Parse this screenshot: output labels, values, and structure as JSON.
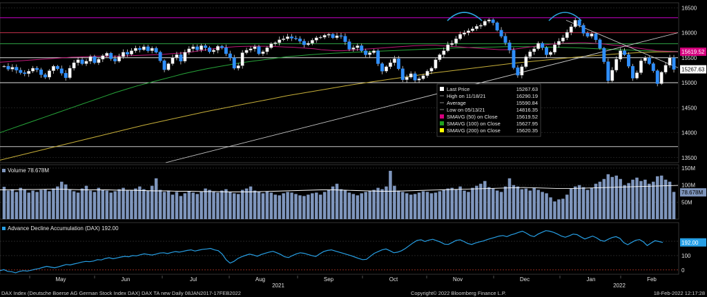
{
  "chart_data": [
    {
      "type": "candlestick",
      "panel": "price",
      "ylim": [
        13400,
        16600
      ],
      "yticks": [
        13500,
        14000,
        14500,
        15000,
        15500,
        16000,
        16500
      ],
      "price_boxes": [
        {
          "value": 15619.52,
          "label": "15619.52",
          "bg": "#d6007f",
          "fg": "#ffffff"
        },
        {
          "value": 15267.63,
          "label": "15267.63",
          "bg": "#ffffff",
          "fg": "#000000"
        }
      ],
      "close_series": [
        15330,
        15270,
        15310,
        15250,
        15200,
        15180,
        15230,
        15290,
        15260,
        15160,
        15110,
        15240,
        15330,
        15280,
        15190,
        15100,
        15290,
        15400,
        15460,
        15380,
        15430,
        15520,
        15400,
        15470,
        15540,
        15590,
        15480,
        15430,
        15520,
        15610,
        15570,
        15640,
        15690,
        15660,
        15720,
        15640,
        15690,
        15610,
        15440,
        15260,
        15380,
        15500,
        15560,
        15430,
        15610,
        15680,
        15720,
        15660,
        15740,
        15700,
        15620,
        15650,
        15730,
        15700,
        15580,
        15500,
        15290,
        15340,
        15600,
        15650,
        15680,
        15720,
        15580,
        15620,
        15700,
        15780,
        15800,
        15860,
        15880,
        15920,
        15890,
        15880,
        15830,
        15760,
        15790,
        15850,
        15900,
        15910,
        15950,
        15970,
        15900,
        15940,
        15930,
        15820,
        15670,
        15700,
        15740,
        15640,
        15560,
        15600,
        15640,
        15380,
        15230,
        15320,
        15400,
        15480,
        15280,
        15060,
        15110,
        15180,
        15050,
        15080,
        15140,
        15230,
        15290,
        15460,
        15560,
        15640,
        15760,
        15790,
        15880,
        15970,
        16000,
        16040,
        16080,
        16130,
        16150,
        16230,
        16260,
        16200,
        16050,
        15930,
        15800,
        15650,
        15300,
        15150,
        15320,
        15520,
        15620,
        15680,
        15790,
        15700,
        15560,
        15610,
        15760,
        15830,
        15900,
        16010,
        16120,
        16250,
        16150,
        15990,
        15930,
        15980,
        15860,
        15690,
        15420,
        15040,
        15250,
        15470,
        15640,
        15560,
        15330,
        15090,
        15200,
        15440,
        15500,
        15380,
        15240,
        14980,
        15210,
        15350,
        15500,
        15267
      ],
      "sma_50": [
        15410,
        15420,
        15430,
        15440,
        15450,
        15460,
        15470,
        15480,
        15490,
        15500,
        15510,
        15515,
        15520,
        15525,
        15530,
        15530,
        15530,
        15535,
        15540,
        15545,
        15550,
        15555,
        15560,
        15570,
        15580,
        15590,
        15600,
        15620,
        15640,
        15660,
        15680,
        15700,
        15710,
        15720,
        15725,
        15730,
        15730,
        15730,
        15725,
        15720,
        15715,
        15710,
        15700,
        15690,
        15680,
        15660,
        15650,
        15640,
        15640,
        15650,
        15660,
        15670,
        15680,
        15690,
        15700,
        15710,
        15720,
        15730,
        15740,
        15745,
        15750,
        15750,
        15740,
        15730,
        15720,
        15710,
        15700,
        15690,
        15680,
        15670,
        15660,
        15660,
        15670,
        15690,
        15710,
        15730,
        15750,
        15770,
        15780,
        15790,
        15795,
        15800,
        15800,
        15790,
        15780,
        15770,
        15750,
        15740,
        15720,
        15700,
        15680,
        15660,
        15640,
        15630,
        15625,
        15620
      ],
      "sma_100": [
        14000,
        14080,
        14160,
        14240,
        14320,
        14400,
        14480,
        14560,
        14640,
        14720,
        14800,
        14870,
        14940,
        15000,
        15060,
        15120,
        15180,
        15230,
        15280,
        15320,
        15360,
        15400,
        15430,
        15460,
        15490,
        15520,
        15540,
        15560,
        15575,
        15590,
        15600,
        15610,
        15620,
        15630,
        15640,
        15650,
        15660,
        15670,
        15680,
        15690,
        15700,
        15705,
        15710,
        15715,
        15720,
        15720,
        15720,
        15715,
        15710,
        15705,
        15700,
        15690,
        15680,
        15670,
        15660,
        15650,
        15640,
        15635,
        15630,
        15628
      ],
      "sma_200": [
        13450,
        13550,
        13650,
        13750,
        13850,
        13950,
        14050,
        14150,
        14240,
        14330,
        14420,
        14500,
        14580,
        14660,
        14740,
        14810,
        14880,
        14950,
        15010,
        15070,
        15130,
        15190,
        15240,
        15290,
        15340,
        15390,
        15430,
        15470,
        15510,
        15545,
        15575,
        15600,
        15615,
        15620
      ],
      "hlines": [
        {
          "value": 16300,
          "color": "#c0c"
        },
        {
          "value": 16000,
          "color": "#c0304a"
        },
        {
          "value": 15780,
          "color": "#2ea043"
        },
        {
          "value": 15500,
          "color": "#e0e0e0"
        },
        {
          "value": 15000,
          "color": "#e0e0e0"
        },
        {
          "value": 13720,
          "color": "#cccccc"
        }
      ],
      "trendlines": [
        {
          "from": [
            0,
            13400
          ],
          "to": [
            1,
            16000
          ],
          "color": "#cccccc"
        },
        {
          "from": [
            0,
            16250
          ],
          "to": [
            1,
            15300
          ],
          "color": "#cccccc"
        }
      ],
      "legend": {
        "rows": [
          {
            "marker": "#ffffff",
            "label": "Last Price",
            "value": "15267.63"
          },
          {
            "marker": "none",
            "label": "High on 11/18/21",
            "value": "16290.19"
          },
          {
            "marker": "none",
            "label": "Average",
            "value": "15590.84"
          },
          {
            "marker": "none",
            "label": "Low on 05/13/21",
            "value": "14816.35"
          },
          {
            "marker": "#d6007f",
            "label": "SMAVG (50)  on Close",
            "value": "15619.52"
          },
          {
            "marker": "#1fa01f",
            "label": "SMAVG (100)  on Close",
            "value": "15627.95"
          },
          {
            "marker": "#ffff00",
            "label": "SMAVG (200)  on Close",
            "value": "15620.35"
          }
        ]
      }
    },
    {
      "type": "bar",
      "panel": "volume",
      "legend_label": "Volume 78.678M",
      "ylim": [
        0,
        160
      ],
      "yticks": [
        {
          "value": 50,
          "label": "50M"
        },
        {
          "value": 100,
          "label": "100M"
        },
        {
          "value": 150,
          "label": "150M"
        }
      ],
      "last_label": "78.678M",
      "values": [
        95,
        84,
        88,
        80,
        92,
        86,
        78,
        84,
        80,
        86,
        88,
        82,
        90,
        96,
        110,
        102,
        88,
        82,
        78,
        90,
        98,
        84,
        80,
        92,
        86,
        84,
        78,
        82,
        88,
        92,
        84,
        86,
        90,
        96,
        88,
        84,
        98,
        120,
        86,
        80,
        84,
        72,
        80,
        68,
        76,
        82,
        78,
        74,
        80,
        90,
        86,
        82,
        78,
        84,
        88,
        80,
        76,
        74,
        86,
        90,
        96,
        84,
        80,
        76,
        82,
        78,
        72,
        70,
        76,
        80,
        78,
        74,
        70,
        68,
        72,
        76,
        78,
        72,
        80,
        86,
        96,
        104,
        88,
        84,
        78,
        74,
        70,
        76,
        80,
        82,
        86,
        92,
        88,
        96,
        142,
        98,
        84,
        80,
        76,
        72,
        74,
        78,
        82,
        80,
        76,
        78,
        82,
        86,
        90,
        92,
        88,
        96,
        84,
        80,
        92,
        98,
        104,
        112,
        94,
        90,
        84,
        80,
        96,
        120,
        100,
        96,
        88,
        90,
        84,
        92,
        86,
        80,
        76,
        64,
        52,
        58,
        60,
        72,
        90,
        96,
        100,
        94,
        86,
        92,
        104,
        110,
        118,
        132,
        124,
        128,
        118,
        100,
        106,
        116,
        122,
        112,
        116,
        104,
        110,
        126,
        128,
        116,
        110,
        80
      ],
      "ma": [
        86,
        86,
        87,
        87,
        88,
        88,
        87,
        86,
        86,
        86,
        85,
        85,
        84,
        83,
        83,
        82,
        82,
        81,
        81,
        80,
        80,
        80,
        81,
        82,
        83,
        84,
        85,
        86,
        86,
        85,
        84,
        83,
        82,
        82,
        83,
        84,
        85,
        86,
        87,
        88,
        89,
        90,
        91,
        92,
        93,
        92,
        91,
        90,
        90,
        91,
        92,
        93,
        94,
        95,
        96,
        97,
        98,
        99
      ]
    },
    {
      "type": "line",
      "panel": "advance-decline",
      "legend_label": "Advance Decline Accumulation (DAX) 192.00",
      "ylim": [
        -30,
        330
      ],
      "yticks": [
        {
          "value": 0,
          "label": "0"
        },
        {
          "value": 100,
          "label": "100"
        },
        {
          "value": 200,
          "label": "200"
        }
      ],
      "last_label": "192.00",
      "values": [
        -5,
        2,
        -10,
        -12,
        -20,
        -10,
        -5,
        -8,
        -2,
        5,
        10,
        18,
        25,
        20,
        15,
        22,
        30,
        38,
        35,
        42,
        48,
        55,
        60,
        58,
        62,
        72,
        70,
        80,
        85,
        78,
        84,
        90,
        95,
        92,
        100,
        98,
        106,
        112,
        108,
        104,
        110,
        118,
        120,
        114,
        122,
        128,
        124,
        130,
        136,
        140,
        132,
        138,
        144,
        146,
        150,
        140,
        134,
        110,
        72,
        48,
        60,
        80,
        92,
        102,
        110,
        104,
        96,
        108,
        116,
        124,
        130,
        120,
        108,
        92,
        86,
        100,
        112,
        120,
        116,
        108,
        100,
        94,
        112,
        128,
        136,
        140,
        132,
        124,
        116,
        108,
        100,
        90,
        80,
        72,
        74,
        96,
        116,
        128,
        140,
        146,
        134,
        120,
        124,
        134,
        150,
        170,
        190,
        206,
        210,
        198,
        208,
        214,
        204,
        194,
        180,
        178,
        192,
        206,
        210,
        198,
        184,
        178,
        188,
        196,
        202,
        212,
        220,
        228,
        236,
        240,
        232,
        244,
        252,
        262,
        270,
        256,
        240,
        232,
        250,
        262,
        274,
        270,
        262,
        250,
        236,
        228,
        238,
        250,
        246,
        230,
        216,
        226,
        236,
        224,
        206,
        200,
        214,
        226,
        232,
        220,
        190,
        176,
        192,
        206,
        212,
        196,
        170,
        188,
        204,
        198,
        192
      ]
    }
  ],
  "xaxis": {
    "months": [
      "May",
      "Jun",
      "Jul",
      "Aug",
      "Sep",
      "Oct",
      "Nov",
      "Dec",
      "Jan",
      "Feb"
    ],
    "years": [
      "2021",
      "2022"
    ]
  },
  "footer": {
    "left": "DAX Index (Deutsche Boerse AG German Stock Index DAX) DAX TA new  Daily 08JAN2017-17FEB2022",
    "center": "Copyright© 2022 Bloomberg Finance L.P.",
    "right": "18-Feb-2022 12:17:28"
  },
  "colors": {
    "up_candle": "#ffffff",
    "down_candle": "#2f8fff",
    "volume_bar": "#7f96bd",
    "ad_line": "#27a0e6",
    "grid": "#3c3c3c"
  }
}
